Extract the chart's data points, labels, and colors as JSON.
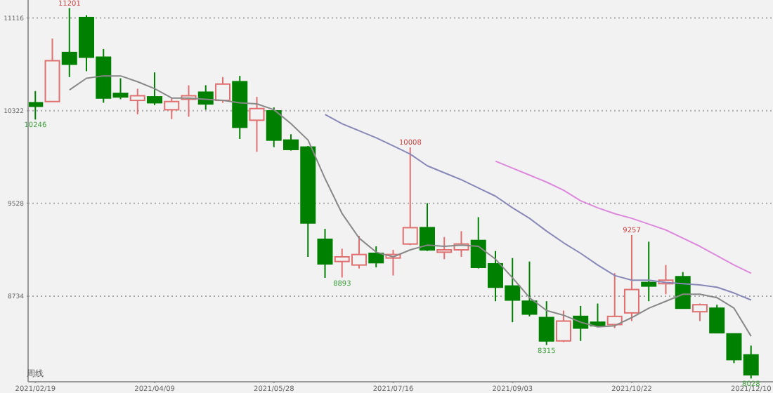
{
  "chart_data": {
    "type": "candlestick",
    "x": [
      "2021-02-19",
      "2021-02-26",
      "2021-03-05",
      "2021-03-12",
      "2021-03-19",
      "2021-03-26",
      "2021-04-02",
      "2021-04-09",
      "2021-04-16",
      "2021-04-23",
      "2021-04-30",
      "2021-05-07",
      "2021-05-14",
      "2021-05-21",
      "2021-05-28",
      "2021-06-04",
      "2021-06-11",
      "2021-06-18",
      "2021-06-25",
      "2021-07-02",
      "2021-07-09",
      "2021-07-16",
      "2021-07-23",
      "2021-07-30",
      "2021-08-06",
      "2021-08-13",
      "2021-08-20",
      "2021-08-27",
      "2021-09-03",
      "2021-09-10",
      "2021-09-17",
      "2021-09-24",
      "2021-10-01",
      "2021-10-08",
      "2021-10-15",
      "2021-10-22",
      "2021-10-29",
      "2021-11-05",
      "2021-11-12",
      "2021-11-19",
      "2021-11-26",
      "2021-12-03",
      "2021-12-10"
    ],
    "ohlc": [
      [
        10390,
        10490,
        10246,
        10360
      ],
      [
        10400,
        10940,
        10400,
        10750
      ],
      [
        10820,
        11201,
        10610,
        10720
      ],
      [
        11120,
        11140,
        10660,
        10780
      ],
      [
        10780,
        10850,
        10390,
        10430
      ],
      [
        10470,
        10600,
        10420,
        10440
      ],
      [
        10410,
        10510,
        10290,
        10450
      ],
      [
        10440,
        10650,
        10370,
        10390
      ],
      [
        10330,
        10430,
        10250,
        10400
      ],
      [
        10420,
        10540,
        10270,
        10450
      ],
      [
        10480,
        10540,
        10330,
        10380
      ],
      [
        10410,
        10610,
        10390,
        10550
      ],
      [
        10570,
        10620,
        10080,
        10180
      ],
      [
        10240,
        10440,
        9970,
        10340
      ],
      [
        10320,
        10350,
        10010,
        10070
      ],
      [
        10070,
        10120,
        9980,
        9990
      ],
      [
        10010,
        10020,
        9070,
        9360
      ],
      [
        9220,
        9310,
        8890,
        9010
      ],
      [
        9030,
        9140,
        8893,
        9070
      ],
      [
        9000,
        9250,
        8970,
        9090
      ],
      [
        9100,
        9160,
        8980,
        9020
      ],
      [
        9060,
        9130,
        8910,
        9090
      ],
      [
        9180,
        10008,
        9170,
        9320
      ],
      [
        9320,
        9530,
        9120,
        9130
      ],
      [
        9110,
        9240,
        9050,
        9130
      ],
      [
        9130,
        9290,
        9070,
        9180
      ],
      [
        9210,
        9410,
        8970,
        8980
      ],
      [
        9010,
        9120,
        8690,
        8810
      ],
      [
        8820,
        9060,
        8510,
        8700
      ],
      [
        8690,
        9030,
        8560,
        8580
      ],
      [
        8550,
        8690,
        8315,
        8350
      ],
      [
        8350,
        8610,
        8340,
        8520
      ],
      [
        8560,
        8650,
        8350,
        8460
      ],
      [
        8510,
        8670,
        8480,
        8480
      ],
      [
        8490,
        8930,
        8460,
        8560
      ],
      [
        8590,
        9257,
        8520,
        8790
      ],
      [
        8850,
        9200,
        8690,
        8820
      ],
      [
        8840,
        9000,
        8750,
        8870
      ],
      [
        8900,
        8940,
        8630,
        8630
      ],
      [
        8600,
        8670,
        8520,
        8660
      ],
      [
        8630,
        8660,
        8420,
        8420
      ],
      [
        8410,
        8410,
        8160,
        8190
      ],
      [
        8230,
        8310,
        8028,
        8060
      ]
    ],
    "colors": [
      "#008000",
      "#e07070",
      "#008000",
      "#008000",
      "#008000",
      "#008000",
      "#e07070",
      "#008000",
      "#e07070",
      "#e07070",
      "#008000",
      "#e07070",
      "#008000",
      "#e07070",
      "#008000",
      "#008000",
      "#008000",
      "#008000",
      "#e07070",
      "#e07070",
      "#008000",
      "#e07070",
      "#e07070",
      "#008000",
      "#e07070",
      "#e07070",
      "#008000",
      "#008000",
      "#008000",
      "#008000",
      "#008000",
      "#e07070",
      "#008000",
      "#008000",
      "#e07070",
      "#e07070",
      "#008000",
      "#e07070",
      "#008000",
      "#e07070",
      "#008000",
      "#008000",
      "#008000"
    ],
    "series": [
      {
        "type": "line",
        "color": "#888888",
        "values": [
          null,
          null,
          10500,
          10600,
          10620,
          10620,
          10570,
          10510,
          10430,
          10430,
          10420,
          10410,
          10390,
          10380,
          10330,
          10210,
          10070,
          9740,
          9440,
          9230,
          9110,
          9070,
          9130,
          9170,
          9160,
          9170,
          9160,
          9050,
          8890,
          8720,
          8610,
          8570,
          8510,
          8470,
          8480,
          8550,
          8630,
          8690,
          8750,
          8750,
          8720,
          8630,
          8390
        ]
      },
      {
        "type": "line",
        "color": "#8888b8",
        "values": [
          null,
          null,
          null,
          null,
          null,
          null,
          null,
          null,
          null,
          null,
          null,
          null,
          null,
          null,
          null,
          null,
          null,
          10290,
          10210,
          10150,
          10090,
          10020,
          9950,
          9850,
          9790,
          9730,
          9660,
          9590,
          9490,
          9400,
          9290,
          9190,
          9100,
          9000,
          8910,
          8870,
          8870,
          8850,
          8840,
          8830,
          8810,
          8760,
          8700
        ]
      },
      {
        "type": "line",
        "color": "#dd88dd",
        "values": [
          null,
          null,
          null,
          null,
          null,
          null,
          null,
          null,
          null,
          null,
          null,
          null,
          null,
          null,
          null,
          null,
          null,
          null,
          null,
          null,
          null,
          null,
          null,
          null,
          null,
          null,
          null,
          9890,
          9830,
          9770,
          9710,
          9640,
          9550,
          9490,
          9440,
          9400,
          9350,
          9300,
          9230,
          9160,
          9080,
          9000,
          8930
        ]
      }
    ],
    "xlim": [
      "2021-02-16",
      "2021-12-19"
    ],
    "xticks": [
      {
        "value": "2021-02-19",
        "label": "2021/02/19"
      },
      {
        "value": "2021-04-09",
        "label": "2021/04/09"
      },
      {
        "value": "2021-05-28",
        "label": "2021/05/28"
      },
      {
        "value": "2021-07-16",
        "label": "2021/07/16"
      },
      {
        "value": "2021-09-03",
        "label": "2021/09/03"
      },
      {
        "value": "2021-10-22",
        "label": "2021/10/22"
      },
      {
        "value": "2021-12-10",
        "label": "2021/12/10"
      }
    ],
    "ylim": [
      8000,
      11270
    ],
    "yticks": [
      8734,
      9528,
      10322,
      11116
    ],
    "grid": "y",
    "line_style": "solid",
    "annotations": [
      {
        "text": "11201",
        "x": "2021-03-05",
        "y": 11201
      },
      {
        "text": "10246",
        "x": "2021-02-19",
        "y": 10246
      },
      {
        "text": "8893",
        "x": "2021-06-25",
        "y": 8893
      },
      {
        "text": "10008",
        "x": "2021-07-23",
        "y": 10008
      },
      {
        "text": "8315",
        "x": "2021-09-17",
        "y": 8315
      },
      {
        "text": "9257",
        "x": "2021-10-22",
        "y": 9257
      },
      {
        "text": "8028",
        "x": "2021-12-10",
        "y": 8028
      },
      "周线"
    ]
  }
}
